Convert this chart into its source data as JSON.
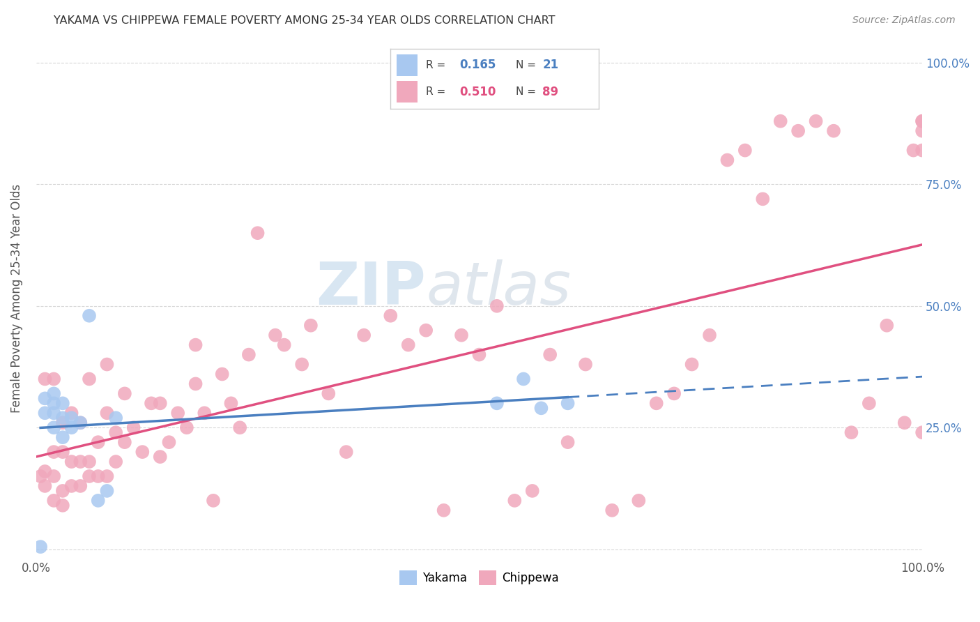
{
  "title": "YAKAMA VS CHIPPEWA FEMALE POVERTY AMONG 25-34 YEAR OLDS CORRELATION CHART",
  "source": "Source: ZipAtlas.com",
  "ylabel": "Female Poverty Among 25-34 Year Olds",
  "xlim": [
    0,
    1.0
  ],
  "ylim": [
    -0.02,
    1.05
  ],
  "legend_top": {
    "yakama_R": "0.165",
    "yakama_N": "21",
    "chippewa_R": "0.510",
    "chippewa_N": "89"
  },
  "yakama_color": "#a8c8f0",
  "chippewa_color": "#f0a8bc",
  "trendline_yakama_solid_color": "#4a7fc0",
  "trendline_yakama_dash_color": "#4a7fc0",
  "trendline_chippewa_color": "#e05080",
  "watermark_color": "#c8dced",
  "background_color": "#ffffff",
  "grid_color": "#d8d8d8",
  "yakama_x": [
    0.005,
    0.01,
    0.01,
    0.02,
    0.02,
    0.02,
    0.02,
    0.03,
    0.03,
    0.03,
    0.04,
    0.04,
    0.05,
    0.06,
    0.07,
    0.08,
    0.09,
    0.52,
    0.55,
    0.57,
    0.6
  ],
  "yakama_y": [
    0.005,
    0.28,
    0.31,
    0.25,
    0.28,
    0.3,
    0.32,
    0.23,
    0.27,
    0.3,
    0.25,
    0.27,
    0.26,
    0.48,
    0.1,
    0.12,
    0.27,
    0.3,
    0.35,
    0.29,
    0.3
  ],
  "chippewa_x": [
    0.005,
    0.01,
    0.01,
    0.01,
    0.02,
    0.02,
    0.02,
    0.02,
    0.03,
    0.03,
    0.03,
    0.03,
    0.04,
    0.04,
    0.04,
    0.05,
    0.05,
    0.05,
    0.06,
    0.06,
    0.06,
    0.07,
    0.07,
    0.08,
    0.08,
    0.08,
    0.09,
    0.09,
    0.1,
    0.1,
    0.11,
    0.12,
    0.13,
    0.14,
    0.14,
    0.15,
    0.16,
    0.17,
    0.18,
    0.18,
    0.19,
    0.2,
    0.21,
    0.22,
    0.23,
    0.24,
    0.25,
    0.27,
    0.28,
    0.3,
    0.31,
    0.33,
    0.35,
    0.37,
    0.4,
    0.42,
    0.44,
    0.46,
    0.48,
    0.5,
    0.52,
    0.54,
    0.56,
    0.58,
    0.6,
    0.62,
    0.65,
    0.68,
    0.7,
    0.72,
    0.74,
    0.76,
    0.78,
    0.8,
    0.82,
    0.84,
    0.86,
    0.88,
    0.9,
    0.92,
    0.94,
    0.96,
    0.98,
    0.99,
    1.0,
    1.0,
    1.0,
    1.0,
    1.0
  ],
  "chippewa_y": [
    0.15,
    0.13,
    0.16,
    0.35,
    0.1,
    0.15,
    0.2,
    0.35,
    0.09,
    0.12,
    0.2,
    0.26,
    0.13,
    0.18,
    0.28,
    0.13,
    0.18,
    0.26,
    0.15,
    0.18,
    0.35,
    0.15,
    0.22,
    0.15,
    0.28,
    0.38,
    0.18,
    0.24,
    0.22,
    0.32,
    0.25,
    0.2,
    0.3,
    0.19,
    0.3,
    0.22,
    0.28,
    0.25,
    0.34,
    0.42,
    0.28,
    0.1,
    0.36,
    0.3,
    0.25,
    0.4,
    0.65,
    0.44,
    0.42,
    0.38,
    0.46,
    0.32,
    0.2,
    0.44,
    0.48,
    0.42,
    0.45,
    0.08,
    0.44,
    0.4,
    0.5,
    0.1,
    0.12,
    0.4,
    0.22,
    0.38,
    0.08,
    0.1,
    0.3,
    0.32,
    0.38,
    0.44,
    0.8,
    0.82,
    0.72,
    0.88,
    0.86,
    0.88,
    0.86,
    0.24,
    0.3,
    0.46,
    0.26,
    0.82,
    0.82,
    0.86,
    0.88,
    0.88,
    0.24
  ]
}
